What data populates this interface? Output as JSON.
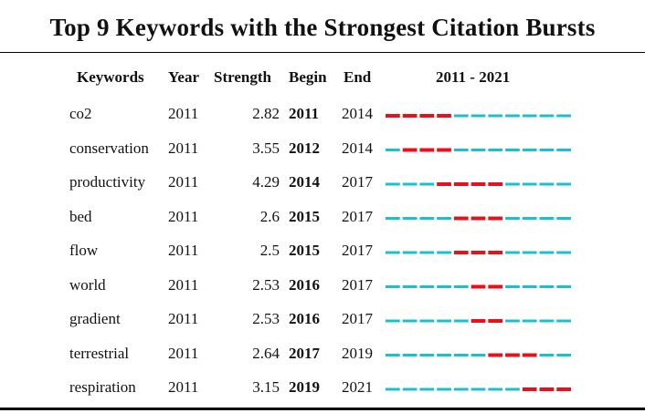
{
  "chart_data": {
    "type": "table",
    "title": "Top 9 Keywords with the Strongest Citation Bursts",
    "columns": {
      "keywords": "Keywords",
      "year": "Year",
      "strength": "Strength",
      "begin": "Begin",
      "end": "End",
      "range": "2011 - 2021"
    },
    "range_start": 2011,
    "range_end": 2021,
    "colors": {
      "burst": "#e8101a",
      "baseline": "#18c2cc"
    },
    "rows": [
      {
        "keyword": "co2",
        "year": "2011",
        "strength": "2.82",
        "begin": "2011",
        "end": "2014"
      },
      {
        "keyword": "conservation",
        "year": "2011",
        "strength": "3.55",
        "begin": "2012",
        "end": "2014"
      },
      {
        "keyword": "productivity",
        "year": "2011",
        "strength": "4.29",
        "begin": "2014",
        "end": "2017"
      },
      {
        "keyword": "bed",
        "year": "2011",
        "strength": "2.6",
        "begin": "2015",
        "end": "2017"
      },
      {
        "keyword": "flow",
        "year": "2011",
        "strength": "2.5",
        "begin": "2015",
        "end": "2017"
      },
      {
        "keyword": "world",
        "year": "2011",
        "strength": "2.53",
        "begin": "2016",
        "end": "2017"
      },
      {
        "keyword": "gradient",
        "year": "2011",
        "strength": "2.53",
        "begin": "2016",
        "end": "2017"
      },
      {
        "keyword": "terrestrial",
        "year": "2011",
        "strength": "2.64",
        "begin": "2017",
        "end": "2019"
      },
      {
        "keyword": "respiration",
        "year": "2011",
        "strength": "3.15",
        "begin": "2019",
        "end": "2021"
      }
    ]
  }
}
